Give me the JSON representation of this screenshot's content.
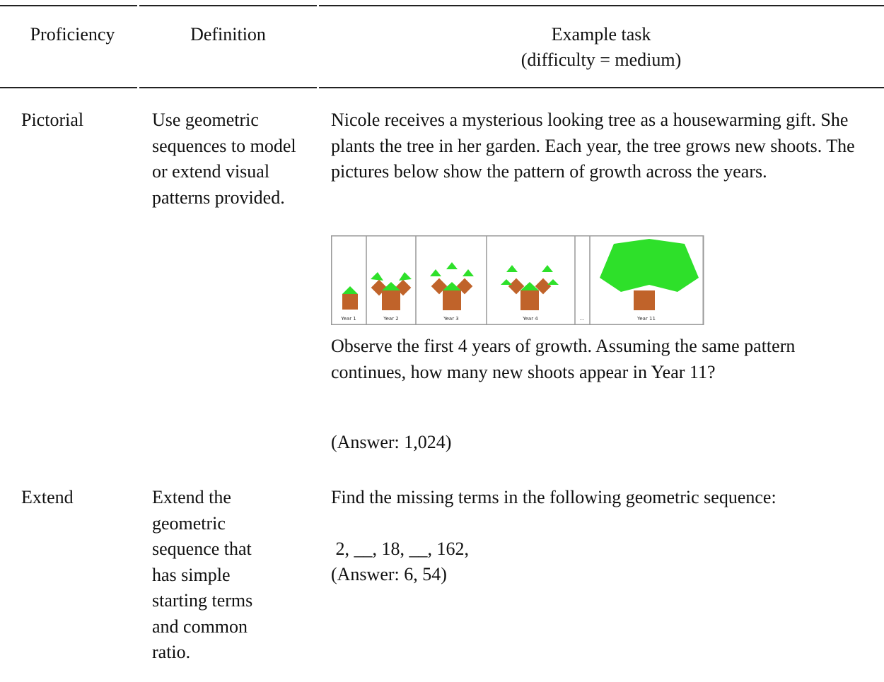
{
  "table": {
    "headers": {
      "proficiency": "Proficiency",
      "definition": "Definition",
      "example_task": "Example task",
      "difficulty": "(difficulty = medium)"
    },
    "rows": [
      {
        "proficiency": "Pictorial",
        "definition": "Use geometric sequences to model or extend visual patterns provided.",
        "task": [
          "Nicole receives a mysterious looking tree as a housewarming gift. She plants the tree in her garden. Each year, the tree grows new shoots. The pictures below show the pattern of growth across the years.",
          "Observe the first 4 years of growth. Assuming the same pattern continues, how many new shoots appear in Year 11?",
          "(Answer: 1,024)"
        ],
        "figure_labels": [
          "Year 1",
          "Year 2",
          "Year 3",
          "Year 4",
          "...",
          "Year 11"
        ]
      },
      {
        "proficiency": "Extend",
        "definition": "Extend the geometric sequence that has simple starting terms and common ratio.",
        "task": [
          "Find the missing terms in the following geometric sequence:",
          " 2, __, 18, __, 162,",
          "(Answer: 6, 54)"
        ]
      }
    ]
  }
}
